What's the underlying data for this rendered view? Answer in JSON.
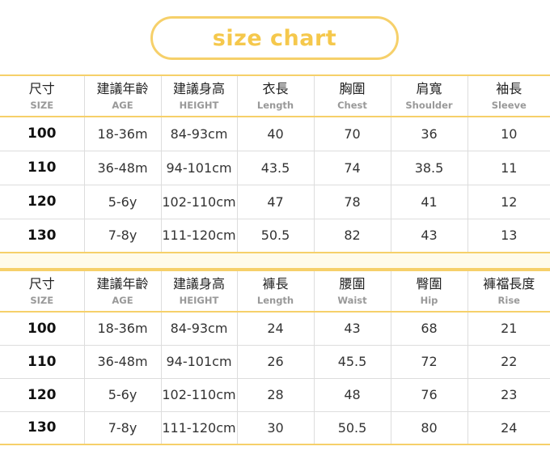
{
  "title": "size chart",
  "colors": {
    "accent": "#f6d06a",
    "gap": "#fffbea"
  },
  "tops": {
    "headers": [
      {
        "zh": "尺寸",
        "en": "SIZE"
      },
      {
        "zh": "建議年齡",
        "en": "AGE"
      },
      {
        "zh": "建議身高",
        "en": "HEIGHT"
      },
      {
        "zh": "衣長",
        "en": "Length"
      },
      {
        "zh": "胸圍",
        "en": "Chest"
      },
      {
        "zh": "肩寬",
        "en": "Shoulder"
      },
      {
        "zh": "袖長",
        "en": "Sleeve"
      }
    ],
    "rows": [
      [
        "100",
        "18-36m",
        "84-93cm",
        "40",
        "70",
        "36",
        "10"
      ],
      [
        "110",
        "36-48m",
        "94-101cm",
        "43.5",
        "74",
        "38.5",
        "11"
      ],
      [
        "120",
        "5-6y",
        "102-110cm",
        "47",
        "78",
        "41",
        "12"
      ],
      [
        "130",
        "7-8y",
        "111-120cm",
        "50.5",
        "82",
        "43",
        "13"
      ]
    ]
  },
  "bottoms": {
    "headers": [
      {
        "zh": "尺寸",
        "en": "SIZE"
      },
      {
        "zh": "建議年齡",
        "en": "AGE"
      },
      {
        "zh": "建議身高",
        "en": "HEIGHT"
      },
      {
        "zh": "褲長",
        "en": "Length"
      },
      {
        "zh": "腰圍",
        "en": "Waist"
      },
      {
        "zh": "臀圍",
        "en": "Hip"
      },
      {
        "zh": "褲襠長度",
        "en": "Rise"
      }
    ],
    "rows": [
      [
        "100",
        "18-36m",
        "84-93cm",
        "24",
        "43",
        "68",
        "21"
      ],
      [
        "110",
        "36-48m",
        "94-101cm",
        "26",
        "45.5",
        "72",
        "22"
      ],
      [
        "120",
        "5-6y",
        "102-110cm",
        "28",
        "48",
        "76",
        "23"
      ],
      [
        "130",
        "7-8y",
        "111-120cm",
        "30",
        "50.5",
        "80",
        "24"
      ]
    ]
  }
}
